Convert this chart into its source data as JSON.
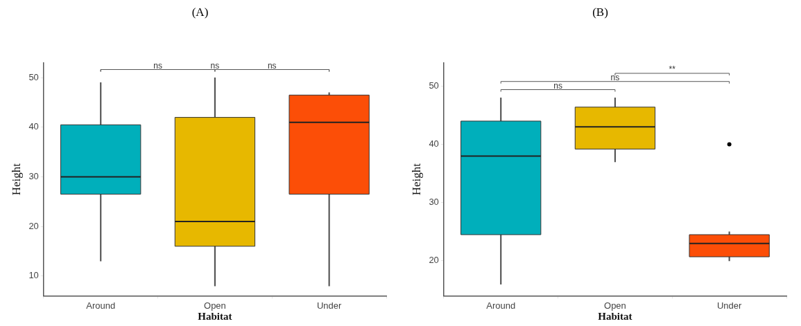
{
  "chart_data": [
    {
      "type": "box",
      "title": "(A)",
      "xlabel": "Habitat",
      "ylabel": "Height",
      "categories": [
        "Around",
        "Open",
        "Under"
      ],
      "colors": [
        "#00afbb",
        "#e7b800",
        "#fc4e07"
      ],
      "boxes": [
        {
          "low": 13,
          "q1": 26.5,
          "median": 30,
          "q3": 40.5,
          "high": 49
        },
        {
          "low": 8,
          "q1": 16,
          "median": 21,
          "q3": 42,
          "high": 50
        },
        {
          "low": 8,
          "q1": 26.5,
          "median": 41,
          "q3": 46.5,
          "high": 47
        }
      ],
      "ylim": [
        6,
        53
      ],
      "yticks": [
        10,
        20,
        30,
        40,
        50
      ],
      "grid": false,
      "legend": false,
      "annotations": [
        "ns",
        "ns",
        "ns"
      ]
    },
    {
      "type": "box",
      "title": "(B)",
      "xlabel": "Habitat",
      "ylabel": "Height",
      "categories": [
        "Around",
        "Open",
        "Under"
      ],
      "colors": [
        "#00afbb",
        "#e7b800",
        "#fc4e07"
      ],
      "boxes": [
        {
          "low": 16,
          "q1": 24.5,
          "median": 38,
          "q3": 44,
          "high": 48
        },
        {
          "low": 37,
          "q1": 39.2,
          "median": 43,
          "q3": 46.4,
          "high": 48
        },
        {
          "low": 20,
          "q1": 20.7,
          "median": 23,
          "q3": 24.5,
          "high": 25,
          "outliers": [
            40
          ]
        }
      ],
      "ylim": [
        14,
        54
      ],
      "yticks": [
        20,
        30,
        40,
        50
      ],
      "grid": false,
      "legend": false,
      "annotations": [
        "ns",
        "ns",
        "**"
      ]
    }
  ]
}
